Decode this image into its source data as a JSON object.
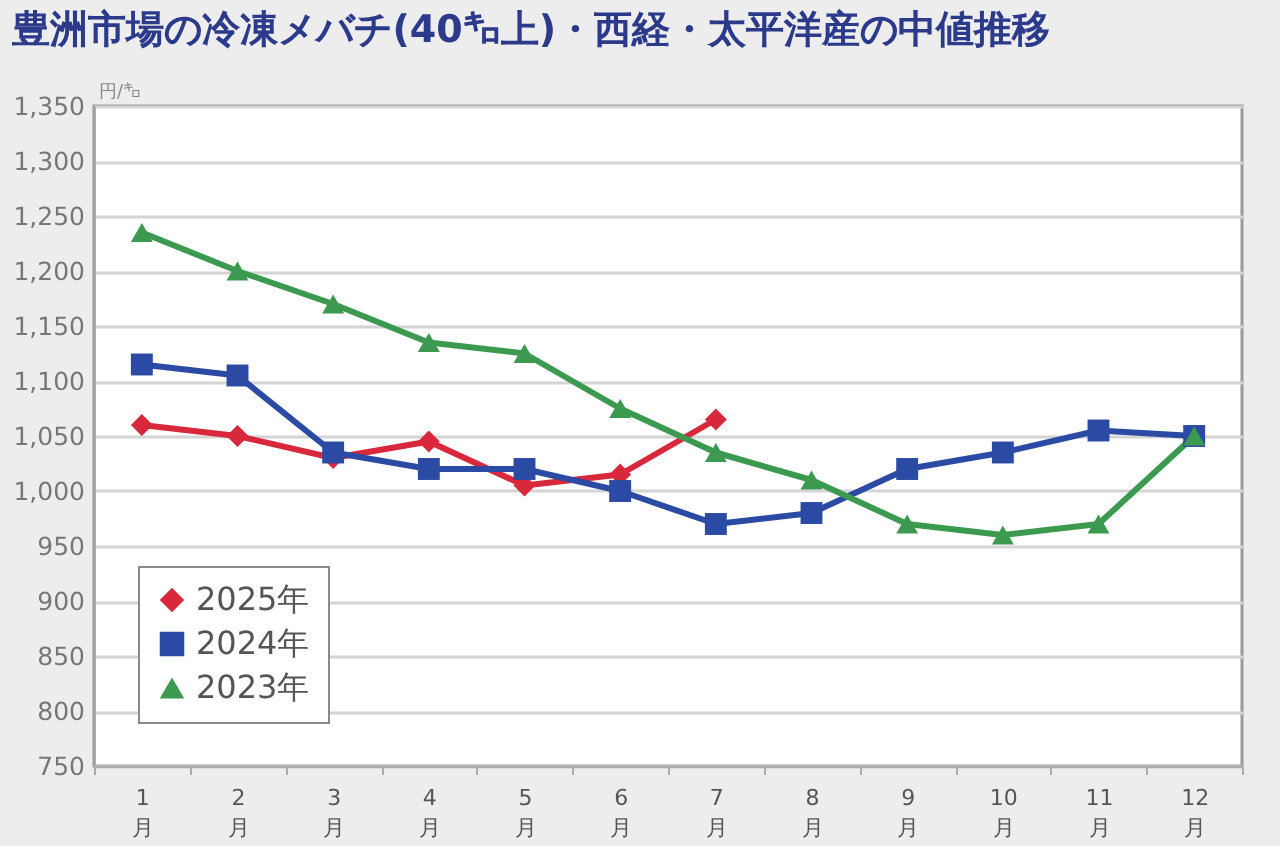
{
  "chart_data": {
    "type": "line",
    "title": "豊洲市場の冷凍メバチ(40㌔上)・西経・太平洋産の中値推移",
    "ylabel": "円/㌔",
    "categories": [
      "1月",
      "2月",
      "3月",
      "4月",
      "5月",
      "6月",
      "7月",
      "8月",
      "9月",
      "10月",
      "11月",
      "12月"
    ],
    "series": [
      {
        "name": "2025年",
        "color": "#d7283c",
        "marker": "diamond",
        "values": [
          1060,
          1050,
          1030,
          1045,
          1005,
          1015,
          1065,
          null,
          null,
          null,
          null,
          null
        ]
      },
      {
        "name": "2024年",
        "color": "#2b4aa3",
        "marker": "square",
        "values": [
          1115,
          1105,
          1035,
          1020,
          1020,
          1000,
          970,
          980,
          1020,
          1035,
          1055,
          1050
        ]
      },
      {
        "name": "2023年",
        "color": "#3c9a50",
        "marker": "triangle",
        "values": [
          1235,
          1200,
          1170,
          1135,
          1125,
          1075,
          1035,
          1010,
          970,
          960,
          970,
          1050
        ]
      }
    ],
    "ylim": [
      750,
      1350
    ],
    "yticks": [
      750,
      800,
      850,
      900,
      950,
      {
        "value": 1000,
        "label": "1,000"
      },
      {
        "value": 1050,
        "label": "1,050"
      },
      {
        "value": 1100,
        "label": "1,100"
      },
      {
        "value": 1150,
        "label": "1,150"
      },
      {
        "value": 1200,
        "label": "1,200"
      },
      {
        "value": 1250,
        "label": "1,250"
      },
      {
        "value": 1300,
        "label": "1,300"
      },
      {
        "value": 1350,
        "label": "1,350"
      }
    ],
    "grid": "y",
    "legend": "bottom left",
    "line_style": "solid"
  }
}
